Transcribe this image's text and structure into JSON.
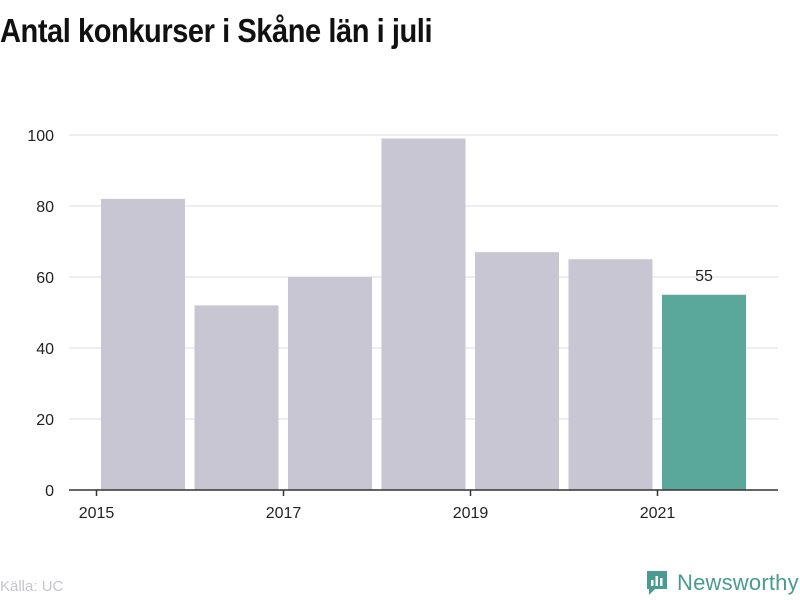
{
  "title": "Antal konkurser i Skåne län i juli",
  "source": "Källa: UC",
  "brand": "Newsworthy",
  "colors": {
    "bar": "#c8c6d2",
    "highlight": "#5aa89c",
    "grid": "#dddddd",
    "axis": "#333333",
    "text": "#222222"
  },
  "chart_data": {
    "type": "bar",
    "categories": [
      "2015",
      "2016",
      "2017",
      "2018",
      "2019",
      "2020",
      "2021"
    ],
    "values": [
      82,
      52,
      60,
      99,
      67,
      65,
      55
    ],
    "highlight_index": 6,
    "data_labels": [
      null,
      null,
      null,
      null,
      null,
      null,
      "55"
    ],
    "x_ticks": [
      "2015",
      "2017",
      "2019",
      "2021"
    ],
    "y_ticks": [
      "0",
      "20",
      "40",
      "60",
      "80",
      "100"
    ],
    "ylim": [
      0,
      100
    ],
    "title": "Antal konkurser i Skåne län i juli",
    "xlabel": "",
    "ylabel": "",
    "grid": true
  }
}
